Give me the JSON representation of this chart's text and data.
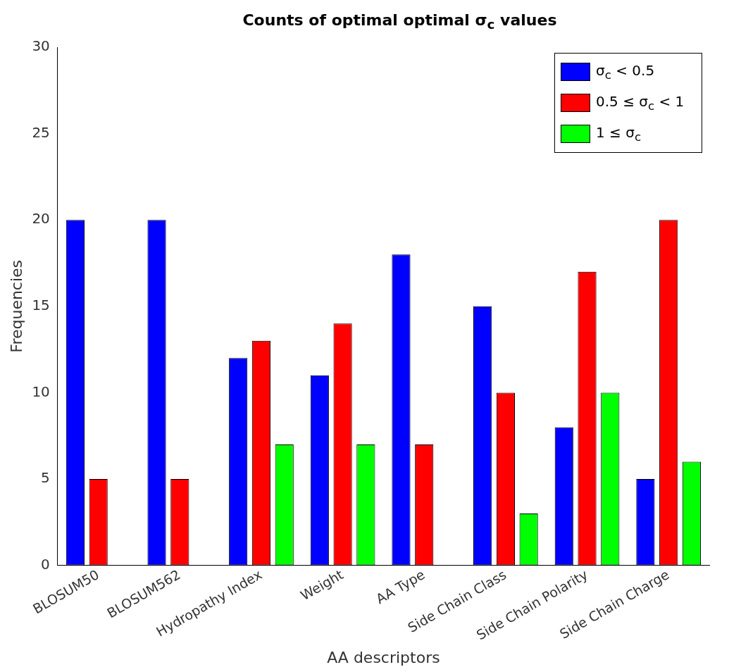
{
  "chart_data": {
    "type": "bar",
    "title": "Counts of optimal optimal σ$_{c}$ values",
    "xlabel": "AA descriptors",
    "ylabel": "Frequencies",
    "categories": [
      "BLOSUM50",
      "BLOSUM562",
      "Hydropathy Index",
      "Weight",
      "AA Type",
      "Side Chain Class",
      "Side Chain Polarity",
      "Side Chain Charge"
    ],
    "series": [
      {
        "name": "σ$_{c}$ < 0.5",
        "color": "#0000ff",
        "values": [
          20,
          20,
          12,
          11,
          18,
          15,
          8,
          5
        ]
      },
      {
        "name": "0.5 ≤ σ$_{c}$ < 1",
        "color": "#ff0000",
        "values": [
          5,
          5,
          13,
          14,
          7,
          10,
          17,
          20
        ]
      },
      {
        "name": "1 ≤ σ$_{c}$",
        "color": "#00ff00",
        "values": [
          0,
          0,
          7,
          7,
          0,
          3,
          10,
          6
        ]
      }
    ],
    "ylim": [
      0,
      30
    ],
    "yticks": [
      0,
      5,
      10,
      15,
      20,
      25,
      30
    ],
    "grid": false,
    "legend": "top right"
  }
}
